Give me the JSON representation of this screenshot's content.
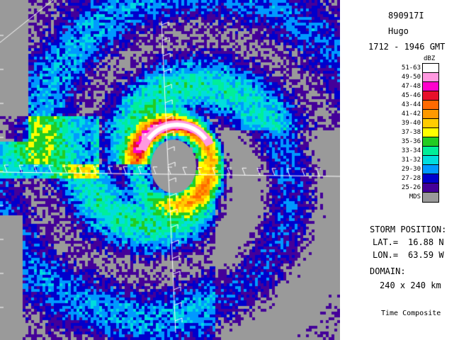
{
  "header": {
    "id": "890917I",
    "storm_name": "Hugo",
    "time_range": "1712 - 1946 GMT"
  },
  "legend": {
    "unit": "dBZ",
    "levels": [
      {
        "label": "51-63",
        "color": "#ffffff"
      },
      {
        "label": "49-50",
        "color": "#ff99e0"
      },
      {
        "label": "47-48",
        "color": "#ff00cc"
      },
      {
        "label": "45-46",
        "color": "#e8102a"
      },
      {
        "label": "43-44",
        "color": "#ff6a00"
      },
      {
        "label": "41-42",
        "color": "#ff9900"
      },
      {
        "label": "39-40",
        "color": "#ffcc00"
      },
      {
        "label": "37-38",
        "color": "#ffff00"
      },
      {
        "label": "35-36",
        "color": "#22cc22"
      },
      {
        "label": "33-34",
        "color": "#00ee99"
      },
      {
        "label": "31-32",
        "color": "#00dddd"
      },
      {
        "label": "29-30",
        "color": "#0099ff"
      },
      {
        "label": "27-28",
        "color": "#0000cc"
      },
      {
        "label": "25-26",
        "color": "#440099"
      },
      {
        "label": "MDS",
        "color": "#9a9a9a"
      }
    ]
  },
  "storm_position": {
    "heading": "STORM POSITION:",
    "lat_label": "LAT.=",
    "lat_value": "16.88 N",
    "lon_label": "LON.=",
    "lon_value": "63.59 W"
  },
  "domain": {
    "heading": "DOMAIN:",
    "value": "240 x 240 km"
  },
  "footer": {
    "label": "Time Composite"
  }
}
